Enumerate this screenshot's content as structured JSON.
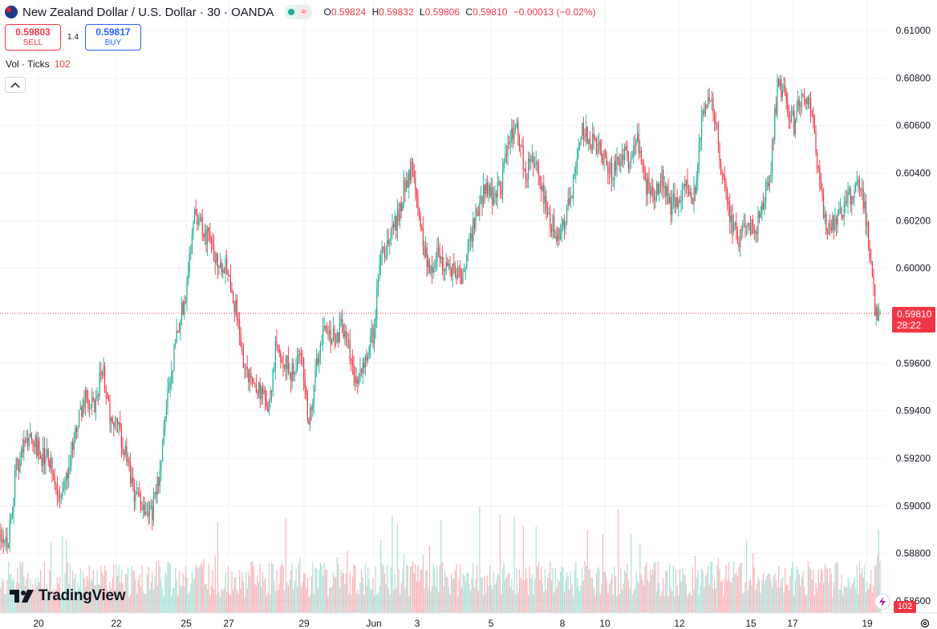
{
  "header": {
    "symbol_title": "New Zealand Dollar / U.S. Dollar · 30 · OANDA",
    "ohlc": {
      "o_label": "O",
      "o": "0.59824",
      "h_label": "H",
      "h": "0.59832",
      "l_label": "L",
      "l": "0.59806",
      "c_label": "C",
      "c": "0.59810",
      "change": "−0.00013 (−0.02%)"
    }
  },
  "trade": {
    "sell_price": "0.59803",
    "sell_label": "SELL",
    "spread": "1.4",
    "buy_price": "0.59817",
    "buy_label": "BUY"
  },
  "volume_indicator": {
    "label": "Vol · Ticks",
    "value": "102"
  },
  "price_tag": {
    "price": "0.59810",
    "countdown": "28:22"
  },
  "volume_tag": "102",
  "logo": {
    "text": "TradingView"
  },
  "colors": {
    "up": "#22ab94",
    "down": "#f23645",
    "grid": "#f0f3fa",
    "axis_text": "#131722"
  },
  "chart_data": {
    "type": "candlestick",
    "title": "New Zealand Dollar / U.S. Dollar · 30 · OANDA",
    "ylim": [
      0.586,
      0.61
    ],
    "y_ticks": [
      "0.61000",
      "0.60800",
      "0.60600",
      "0.60400",
      "0.60200",
      "0.60000",
      "0.59600",
      "0.59400",
      "0.59200",
      "0.59000",
      "0.58800",
      "0.58600"
    ],
    "x_ticks": [
      "20",
      "22",
      "25",
      "27",
      "29",
      "Jun",
      "3",
      "5",
      "8",
      "10",
      "12",
      "15",
      "17",
      "19"
    ],
    "last_price": 0.5981,
    "grid": true,
    "price_path": [
      [
        0,
        0.589
      ],
      [
        10,
        0.5885
      ],
      [
        20,
        0.5915
      ],
      [
        35,
        0.593
      ],
      [
        50,
        0.5922
      ],
      [
        62,
        0.5918
      ],
      [
        75,
        0.59
      ],
      [
        90,
        0.5925
      ],
      [
        105,
        0.5945
      ],
      [
        118,
        0.594
      ],
      [
        128,
        0.596
      ],
      [
        138,
        0.5935
      ],
      [
        150,
        0.593
      ],
      [
        160,
        0.5915
      ],
      [
        168,
        0.5905
      ],
      [
        180,
        0.59
      ],
      [
        190,
        0.5898
      ],
      [
        200,
        0.5915
      ],
      [
        210,
        0.595
      ],
      [
        222,
        0.5975
      ],
      [
        232,
        0.599
      ],
      [
        242,
        0.6025
      ],
      [
        255,
        0.6015
      ],
      [
        270,
        0.6005
      ],
      [
        285,
        0.6
      ],
      [
        295,
        0.598
      ],
      [
        305,
        0.5958
      ],
      [
        315,
        0.5952
      ],
      [
        325,
        0.5948
      ],
      [
        335,
        0.594
      ],
      [
        345,
        0.597
      ],
      [
        355,
        0.596
      ],
      [
        365,
        0.5955
      ],
      [
        375,
        0.5965
      ],
      [
        385,
        0.5935
      ],
      [
        395,
        0.596
      ],
      [
        405,
        0.5978
      ],
      [
        415,
        0.597
      ],
      [
        425,
        0.5975
      ],
      [
        435,
        0.5965
      ],
      [
        445,
        0.5952
      ],
      [
        455,
        0.5962
      ],
      [
        465,
        0.5972
      ],
      [
        475,
        0.6005
      ],
      [
        485,
        0.6012
      ],
      [
        495,
        0.602
      ],
      [
        505,
        0.6035
      ],
      [
        515,
        0.6045
      ],
      [
        525,
        0.6015
      ],
      [
        535,
        0.6
      ],
      [
        545,
        0.6005
      ],
      [
        555,
        0.5998
      ],
      [
        565,
        0.6
      ],
      [
        575,
        0.5995
      ],
      [
        585,
        0.601
      ],
      [
        595,
        0.6025
      ],
      [
        605,
        0.6035
      ],
      [
        615,
        0.603
      ],
      [
        625,
        0.6035
      ],
      [
        635,
        0.6055
      ],
      [
        645,
        0.606
      ],
      [
        655,
        0.604
      ],
      [
        665,
        0.6045
      ],
      [
        675,
        0.6035
      ],
      [
        685,
        0.602
      ],
      [
        695,
        0.6015
      ],
      [
        705,
        0.602
      ],
      [
        715,
        0.6035
      ],
      [
        725,
        0.606
      ],
      [
        735,
        0.6055
      ],
      [
        745,
        0.605
      ],
      [
        755,
        0.6045
      ],
      [
        765,
        0.604
      ],
      [
        775,
        0.605
      ],
      [
        785,
        0.6045
      ],
      [
        795,
        0.6055
      ],
      [
        805,
        0.6035
      ],
      [
        815,
        0.603
      ],
      [
        825,
        0.604
      ],
      [
        835,
        0.6025
      ],
      [
        845,
        0.603
      ],
      [
        855,
        0.6035
      ],
      [
        865,
        0.603
      ],
      [
        875,
        0.6065
      ],
      [
        885,
        0.607
      ],
      [
        893,
        0.606
      ],
      [
        900,
        0.604
      ],
      [
        910,
        0.602
      ],
      [
        920,
        0.6012
      ],
      [
        930,
        0.602
      ],
      [
        940,
        0.6015
      ],
      [
        950,
        0.6025
      ],
      [
        960,
        0.604
      ],
      [
        970,
        0.608
      ],
      [
        980,
        0.607
      ],
      [
        990,
        0.606
      ],
      [
        1000,
        0.6075
      ],
      [
        1010,
        0.607
      ],
      [
        1020,
        0.604
      ],
      [
        1030,
        0.6015
      ],
      [
        1040,
        0.602
      ],
      [
        1050,
        0.6025
      ],
      [
        1060,
        0.603
      ],
      [
        1070,
        0.604
      ],
      [
        1080,
        0.602
      ],
      [
        1090,
        0.5985
      ],
      [
        1100,
        0.5975
      ],
      [
        1104,
        0.5981
      ]
    ]
  }
}
